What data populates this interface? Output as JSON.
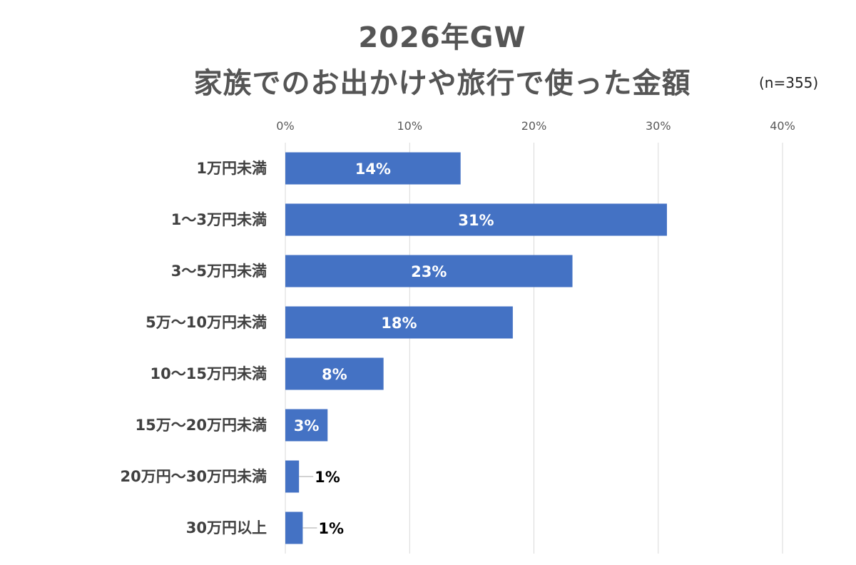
{
  "chart_data": {
    "type": "bar",
    "orientation": "horizontal",
    "title": "2026年GW",
    "subtitle": "家族でのお出かけや旅行で使った金額",
    "note": "(n=355)",
    "categories": [
      "1万円未満",
      "1～3万円未満",
      "3～5万円未満",
      "5万～10万円未満",
      "10～15万円未満",
      "15万～20万円未満",
      "20万円～30万円未満",
      "30万円以上"
    ],
    "values": [
      14,
      31,
      23,
      18,
      8,
      3,
      1,
      1
    ],
    "data_labels": [
      "14%",
      "31%",
      "23%",
      "18%",
      "8%",
      "3%",
      "1%",
      "1%"
    ],
    "bar_values_precise": [
      14.1,
      30.7,
      23.1,
      18.3,
      7.9,
      3.4,
      1.1,
      1.4
    ],
    "xlim": [
      0,
      40
    ],
    "xticks": [
      "0%",
      "10%",
      "20%",
      "30%",
      "40%"
    ],
    "axis_position": "top",
    "grid": true,
    "legend": "none",
    "colors": {
      "bar": "#4472c4",
      "grid": "#d9d9d9",
      "title": "#555555"
    }
  }
}
